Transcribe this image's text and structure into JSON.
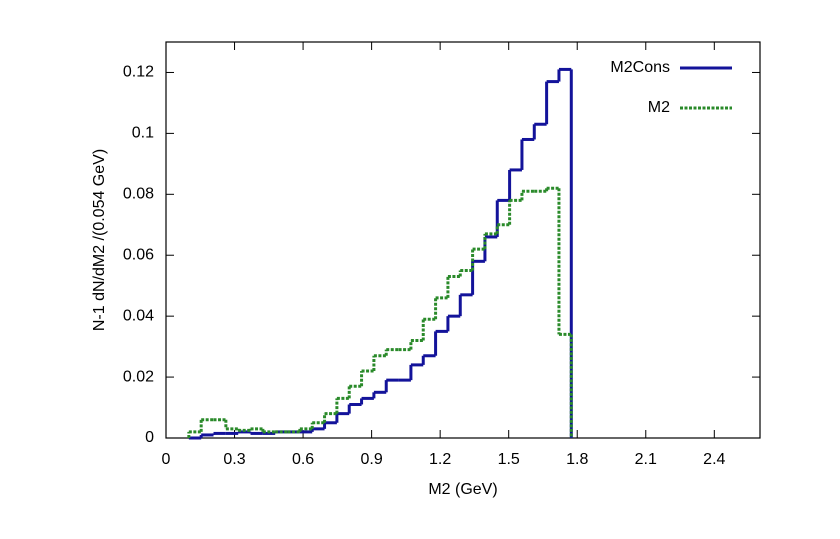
{
  "chart_data": {
    "type": "histogram",
    "xlabel": "M2 (GeV)",
    "ylabel": "N-1 dN/dM2 /(0.054 GeV)",
    "bins": [
      0.1,
      0.154,
      0.208,
      0.262,
      0.316,
      0.37,
      0.424,
      0.478,
      0.532,
      0.586,
      0.64,
      0.694,
      0.748,
      0.802,
      0.856,
      0.91,
      0.964,
      1.018,
      1.072,
      1.126,
      1.18,
      1.234,
      1.288,
      1.342,
      1.396,
      1.45,
      1.504,
      1.558,
      1.612,
      1.666,
      1.72,
      1.774
    ],
    "series": [
      {
        "name": "M2Cons",
        "color": "#13139a",
        "style": "solid",
        "values": [
          0.0,
          0.001,
          0.0015,
          0.0015,
          0.002,
          0.0015,
          0.0015,
          0.002,
          0.002,
          0.002,
          0.003,
          0.005,
          0.008,
          0.011,
          0.013,
          0.015,
          0.019,
          0.019,
          0.024,
          0.027,
          0.035,
          0.04,
          0.047,
          0.058,
          0.066,
          0.078,
          0.088,
          0.098,
          0.103,
          0.117,
          0.121
        ]
      },
      {
        "name": "M2",
        "color": "#2a8a2a",
        "style": "dotted",
        "values": [
          0.002,
          0.006,
          0.006,
          0.003,
          0.0025,
          0.003,
          0.002,
          0.002,
          0.002,
          0.003,
          0.005,
          0.008,
          0.013,
          0.017,
          0.022,
          0.027,
          0.029,
          0.029,
          0.032,
          0.039,
          0.046,
          0.053,
          0.055,
          0.062,
          0.067,
          0.07,
          0.078,
          0.081,
          0.081,
          0.082,
          0.034
        ]
      }
    ],
    "xlim": [
      0,
      2.6
    ],
    "ylim": [
      0,
      0.13
    ],
    "xticks": [
      0,
      0.3,
      0.6,
      0.9,
      1.2,
      1.5,
      1.8,
      2.1,
      2.4
    ],
    "yticks": [
      0,
      0.02,
      0.04,
      0.06,
      0.08,
      0.1,
      0.12
    ],
    "legend": "upper right"
  }
}
